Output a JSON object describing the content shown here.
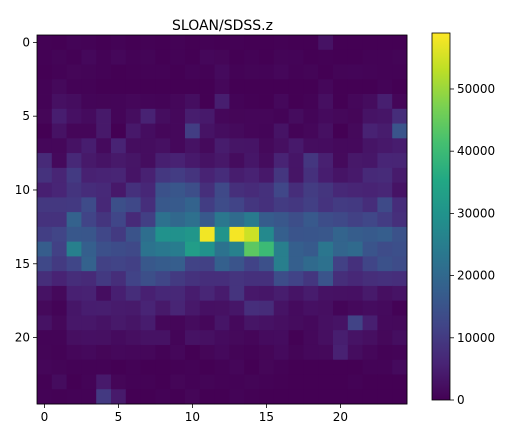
{
  "chart_data": {
    "type": "heatmap",
    "title": "SLOAN/SDSS.z",
    "xlabel": "",
    "ylabel": "",
    "x_range": [
      -0.5,
      24.5
    ],
    "y_range": [
      24.5,
      -0.5
    ],
    "x_ticks": [
      0,
      5,
      10,
      15,
      20
    ],
    "y_ticks": [
      0,
      5,
      10,
      15,
      20
    ],
    "colormap": "viridis",
    "color_range": [
      0,
      59000
    ],
    "colorbar_ticks": [
      0,
      10000,
      20000,
      30000,
      40000,
      50000
    ],
    "colorbar_tick_labels": [
      "0",
      "10000",
      "20000",
      "30000",
      "40000",
      "50000"
    ],
    "grid": false,
    "values": [
      [
        200,
        0,
        500,
        300,
        0,
        400,
        0,
        200,
        0,
        300,
        0,
        200,
        0,
        200,
        0,
        0,
        200,
        0,
        0,
        2800,
        0,
        0,
        0,
        0,
        0
      ],
      [
        200,
        600,
        200,
        1200,
        400,
        1000,
        300,
        600,
        0,
        400,
        0,
        1000,
        800,
        0,
        300,
        0,
        600,
        500,
        0,
        200,
        0,
        0,
        300,
        400,
        600
      ],
      [
        0,
        300,
        800,
        600,
        300,
        0,
        200,
        400,
        300,
        0,
        500,
        300,
        1600,
        400,
        600,
        500,
        1000,
        300,
        600,
        0,
        600,
        700,
        500,
        300,
        300
      ],
      [
        400,
        1300,
        300,
        300,
        0,
        0,
        0,
        0,
        0,
        0,
        0,
        0,
        1000,
        0,
        0,
        0,
        0,
        0,
        0,
        1000,
        0,
        0,
        0,
        500,
        0
      ],
      [
        400,
        2500,
        2000,
        700,
        600,
        700,
        1000,
        700,
        500,
        1000,
        2200,
        0,
        4900,
        500,
        200,
        0,
        1200,
        0,
        400,
        2400,
        0,
        1000,
        1800,
        5000,
        900
      ],
      [
        800,
        4800,
        2600,
        1700,
        4000,
        700,
        2000,
        5500,
        2000,
        1200,
        4700,
        4100,
        1000,
        800,
        900,
        900,
        500,
        1800,
        700,
        1600,
        1100,
        800,
        3000,
        3400,
        7500
      ],
      [
        0,
        2800,
        900,
        900,
        4000,
        0,
        3900,
        2100,
        1000,
        1200,
        10600,
        3000,
        2000,
        1500,
        900,
        700,
        3100,
        500,
        1000,
        2500,
        0,
        1300,
        5500,
        4500,
        15400
      ],
      [
        1000,
        1000,
        2900,
        4800,
        1600,
        5800,
        2000,
        2000,
        2500,
        1200,
        2900,
        1500,
        4500,
        3300,
        3200,
        1300,
        2300,
        4100,
        2000,
        1900,
        1400,
        1400,
        3200,
        3900,
        4600
      ],
      [
        7000,
        1400,
        6700,
        4000,
        3000,
        4000,
        3300,
        2000,
        5000,
        5500,
        4100,
        2800,
        3800,
        1800,
        3600,
        1800,
        5800,
        3400,
        9300,
        5200,
        1500,
        3800,
        3500,
        6100,
        6000
      ],
      [
        8400,
        6000,
        10000,
        5400,
        5700,
        6000,
        3200,
        5400,
        9400,
        10400,
        8800,
        5700,
        7400,
        4700,
        5500,
        3900,
        9300,
        3300,
        8200,
        4800,
        3200,
        4100,
        6800,
        7100,
        4300
      ],
      [
        5100,
        6100,
        8900,
        7400,
        6900,
        3900,
        8100,
        6400,
        14700,
        15700,
        14000,
        8000,
        12800,
        8000,
        7100,
        8200,
        12400,
        7600,
        10300,
        9000,
        6600,
        6000,
        5700,
        6200,
        3000
      ],
      [
        9600,
        9600,
        9800,
        13300,
        6600,
        14200,
        12600,
        7800,
        16200,
        16500,
        18700,
        10600,
        13500,
        11800,
        9300,
        8200,
        10200,
        9400,
        10900,
        8700,
        10100,
        9700,
        7500,
        13100,
        7400
      ],
      [
        8400,
        8500,
        18300,
        11900,
        9000,
        12300,
        7000,
        10800,
        21900,
        19800,
        21700,
        16300,
        23300,
        20600,
        24000,
        17100,
        15900,
        14000,
        16400,
        13700,
        12800,
        11300,
        12500,
        10400,
        8000
      ],
      [
        10700,
        12000,
        16000,
        15700,
        12500,
        9900,
        15100,
        21200,
        29700,
        29600,
        30800,
        58000,
        30300,
        58300,
        54500,
        27600,
        17800,
        15400,
        15600,
        15900,
        18800,
        17200,
        16600,
        17400,
        14900
      ],
      [
        17200,
        11200,
        25400,
        17700,
        14400,
        13600,
        12800,
        22400,
        23500,
        24600,
        32600,
        29800,
        22300,
        25700,
        43900,
        39900,
        25200,
        17800,
        16500,
        23200,
        19000,
        20200,
        15400,
        13500,
        14300
      ],
      [
        12700,
        9900,
        12300,
        18500,
        11200,
        11800,
        11000,
        16100,
        17000,
        17400,
        11600,
        11200,
        18000,
        15400,
        11700,
        14400,
        25200,
        17700,
        20300,
        21900,
        11300,
        8200,
        12100,
        14600,
        13500
      ],
      [
        7700,
        5700,
        7600,
        7000,
        9700,
        7700,
        11700,
        14100,
        12200,
        9900,
        8500,
        7800,
        7800,
        8800,
        8200,
        8100,
        13800,
        11700,
        9300,
        15300,
        7700,
        6700,
        7700,
        8200,
        7800
      ],
      [
        2900,
        1300,
        5300,
        5500,
        2100,
        5100,
        7500,
        5300,
        6500,
        6600,
        4600,
        6200,
        4400,
        8800,
        3900,
        3600,
        4700,
        3200,
        4500,
        2900,
        2700,
        2600,
        4200,
        2300,
        3100
      ],
      [
        1300,
        500,
        3600,
        4800,
        4900,
        4300,
        4200,
        5900,
        4000,
        6000,
        3900,
        2600,
        2700,
        3500,
        7800,
        7300,
        3100,
        1700,
        2600,
        2400,
        700,
        1400,
        1900,
        1600,
        400
      ],
      [
        2900,
        1100,
        3700,
        3700,
        3000,
        4000,
        3300,
        4600,
        1000,
        900,
        1800,
        1000,
        3400,
        1400,
        3300,
        2900,
        2400,
        1800,
        1400,
        2500,
        3000,
        11600,
        5000,
        1400,
        1300
      ],
      [
        500,
        500,
        2300,
        2600,
        2500,
        1700,
        2400,
        2800,
        2800,
        700,
        2800,
        2500,
        1700,
        1300,
        900,
        1700,
        1900,
        200,
        1200,
        2400,
        4900,
        3100,
        2300,
        1100,
        2200
      ],
      [
        600,
        400,
        1000,
        1400,
        800,
        1200,
        1000,
        1000,
        300,
        1000,
        0,
        800,
        1400,
        600,
        400,
        800,
        1600,
        600,
        1200,
        1300,
        5400,
        2000,
        1000,
        300,
        500
      ],
      [
        900,
        600,
        300,
        400,
        300,
        0,
        300,
        0,
        0,
        200,
        400,
        0,
        400,
        900,
        0,
        800,
        400,
        0,
        0,
        0,
        0,
        0,
        500,
        500,
        1600
      ],
      [
        200,
        1800,
        0,
        500,
        4100,
        800,
        400,
        400,
        0,
        800,
        300,
        600,
        400,
        300,
        600,
        300,
        200,
        0,
        0,
        0,
        0,
        300,
        0,
        0,
        0
      ],
      [
        400,
        200,
        300,
        300,
        9800,
        4200,
        0,
        0,
        300,
        0,
        800,
        0,
        0,
        500,
        200,
        0,
        0,
        0,
        0,
        0,
        0,
        0,
        0,
        0,
        0
      ]
    ]
  }
}
